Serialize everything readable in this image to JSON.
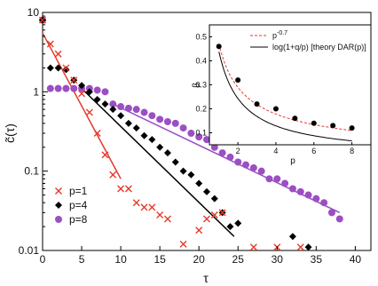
{
  "chart_data": [
    {
      "type": "scatter",
      "xlabel": "τ",
      "ylabel": "c̃(τ)",
      "xlim": [
        0,
        42
      ],
      "ylim": [
        0.01,
        10
      ],
      "yscale": "log",
      "grid": false,
      "legend_position": "bottom-left",
      "x_ticks": [
        0,
        5,
        10,
        15,
        20,
        25,
        30,
        35,
        40
      ],
      "y_ticks": [
        0.01,
        0.1,
        1,
        10
      ],
      "y_tick_labels": [
        "0.01",
        "0.1",
        "1",
        "10"
      ],
      "series": [
        {
          "name": "p=1",
          "marker": "x",
          "color": "#e8392b",
          "points": [
            [
              0,
              8.0
            ],
            [
              1,
              4.0
            ],
            [
              2,
              3.0
            ],
            [
              3,
              2.0
            ],
            [
              4,
              1.4
            ],
            [
              5,
              0.95
            ],
            [
              6,
              0.55
            ],
            [
              7,
              0.3
            ],
            [
              8,
              0.16
            ],
            [
              9,
              0.09
            ],
            [
              10,
              0.06
            ],
            [
              11,
              0.06
            ],
            [
              12,
              0.04
            ],
            [
              13,
              0.035
            ],
            [
              14,
              0.035
            ],
            [
              15,
              0.028
            ],
            [
              16,
              0.025
            ],
            [
              18,
              0.012
            ],
            [
              20,
              0.018
            ],
            [
              21,
              0.025
            ],
            [
              22,
              0.028
            ],
            [
              23,
              0.03
            ],
            [
              27,
              0.011
            ],
            [
              30,
              0.011
            ],
            [
              33,
              0.011
            ]
          ],
          "fit": {
            "x": [
              0,
              10
            ],
            "y": [
              5.5,
              0.08
            ]
          }
        },
        {
          "name": "p=4",
          "marker": "diamond",
          "color": "#000000",
          "points": [
            [
              0,
              8.0
            ],
            [
              1,
              2.0
            ],
            [
              2,
              2.0
            ],
            [
              3,
              1.9
            ],
            [
              4,
              1.4
            ],
            [
              5,
              1.2
            ],
            [
              6,
              1.0
            ],
            [
              7,
              0.8
            ],
            [
              8,
              0.7
            ],
            [
              9,
              0.6
            ],
            [
              10,
              0.5
            ],
            [
              11,
              0.4
            ],
            [
              12,
              0.35
            ],
            [
              13,
              0.28
            ],
            [
              14,
              0.25
            ],
            [
              15,
              0.2
            ],
            [
              16,
              0.17
            ],
            [
              17,
              0.13
            ],
            [
              18,
              0.1
            ],
            [
              19,
              0.09
            ],
            [
              20,
              0.07
            ],
            [
              21,
              0.055
            ],
            [
              22,
              0.045
            ],
            [
              23,
              0.03
            ],
            [
              24,
              0.02
            ],
            [
              25,
              0.022
            ],
            [
              32,
              0.015
            ],
            [
              34,
              0.011
            ]
          ],
          "fit": {
            "x": [
              5,
              24.5
            ],
            "y": [
              1.1,
              0.015
            ]
          }
        },
        {
          "name": "p=8",
          "marker": "circle",
          "color": "#9b4fc4",
          "points": [
            [
              0,
              8.0
            ],
            [
              1,
              1.1
            ],
            [
              2,
              1.1
            ],
            [
              3,
              1.1
            ],
            [
              4,
              1.1
            ],
            [
              5,
              1.1
            ],
            [
              6,
              1.1
            ],
            [
              7,
              1.05
            ],
            [
              8,
              1.0
            ],
            [
              9,
              0.7
            ],
            [
              10,
              0.65
            ],
            [
              11,
              0.62
            ],
            [
              12,
              0.6
            ],
            [
              13,
              0.55
            ],
            [
              14,
              0.5
            ],
            [
              15,
              0.45
            ],
            [
              16,
              0.42
            ],
            [
              17,
              0.4
            ],
            [
              18,
              0.35
            ],
            [
              19,
              0.3
            ],
            [
              20,
              0.27
            ],
            [
              21,
              0.25
            ],
            [
              22,
              0.2
            ],
            [
              23,
              0.17
            ],
            [
              24,
              0.15
            ],
            [
              25,
              0.13
            ],
            [
              26,
              0.12
            ],
            [
              27,
              0.11
            ],
            [
              28,
              0.1
            ],
            [
              29,
              0.08
            ],
            [
              30,
              0.08
            ],
            [
              31,
              0.07
            ],
            [
              32,
              0.06
            ],
            [
              33,
              0.055
            ],
            [
              34,
              0.05
            ],
            [
              35,
              0.045
            ],
            [
              36,
              0.04
            ],
            [
              37,
              0.03
            ],
            [
              38,
              0.025
            ]
          ],
          "fit": {
            "x": [
              9,
              38
            ],
            "y": [
              0.7,
              0.03
            ]
          }
        }
      ]
    },
    {
      "type": "scatter",
      "xlabel": "p",
      "ylabel": "β",
      "xlim": [
        0.5,
        9
      ],
      "ylim": [
        0.05,
        0.55
      ],
      "grid": false,
      "legend_position": "top-right",
      "x_ticks": [
        2,
        4,
        6,
        8
      ],
      "y_ticks": [
        0.1,
        0.2,
        0.3,
        0.4,
        0.5
      ],
      "y_tick_labels": [
        "0.1",
        "0.2",
        "0.3",
        "0.4",
        "0.5"
      ],
      "points": {
        "color": "#000000",
        "x": [
          1,
          2,
          3,
          4,
          5,
          6,
          7,
          8
        ],
        "y": [
          0.46,
          0.32,
          0.22,
          0.2,
          0.16,
          0.14,
          0.13,
          0.12
        ]
      },
      "curves": [
        {
          "legend": "p",
          "legend_sup": "-0.7",
          "style": "dashed",
          "color": "#e8392b",
          "formula": "p^-0.7",
          "coef": 0.47
        },
        {
          "legend": "log(1+q/p) [theory DAR(p)]",
          "style": "solid",
          "color": "#000000",
          "formula": "log(1+q/p)",
          "q": 0.55
        }
      ]
    }
  ]
}
